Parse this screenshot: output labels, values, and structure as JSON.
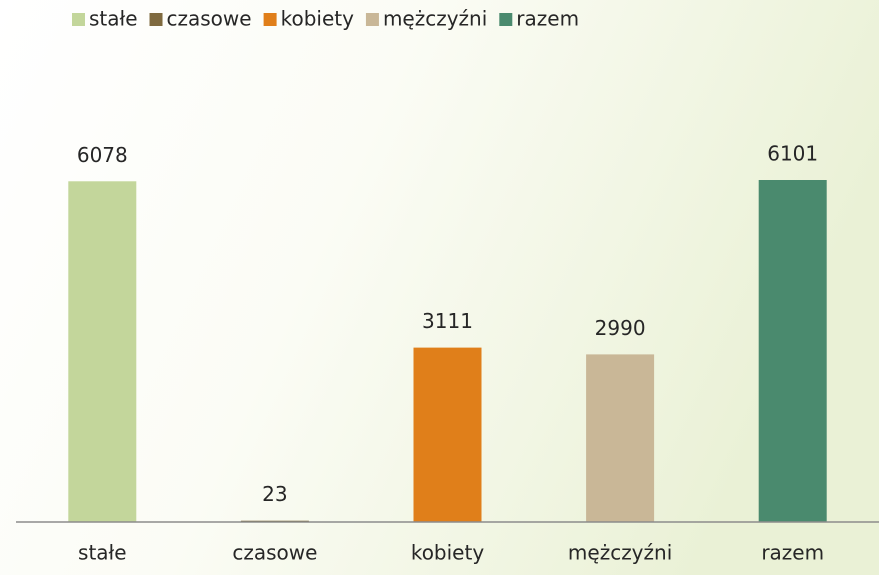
{
  "chart_data": {
    "type": "bar",
    "categories": [
      "stałe",
      "czasowe",
      "kobiety",
      "mężczyźni",
      "razem"
    ],
    "values": [
      6078,
      23,
      3111,
      2990,
      6101
    ],
    "colors": [
      "#c3d69b",
      "#7f6a3f",
      "#e07f1a",
      "#c9b797",
      "#4a8a6e"
    ],
    "legend": "top"
  }
}
